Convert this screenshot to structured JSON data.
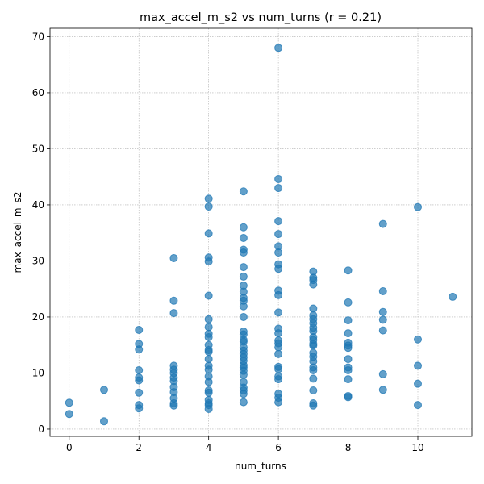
{
  "chart_data": {
    "type": "scatter",
    "title": "max_accel_m_s2 vs num_turns (r = 0.21)",
    "xlabel": "num_turns",
    "ylabel": "max_accel_m_s2",
    "xlim": [
      -0.55,
      11.55
    ],
    "ylim": [
      -1.3,
      71.5
    ],
    "xticks": [
      0,
      2,
      4,
      6,
      8,
      10
    ],
    "yticks": [
      0,
      10,
      20,
      30,
      40,
      50,
      60,
      70
    ],
    "grid": true,
    "color": "#1f77b4",
    "points": [
      [
        0,
        4.7
      ],
      [
        0,
        2.7
      ],
      [
        1,
        7.0
      ],
      [
        1,
        1.4
      ],
      [
        2,
        17.7
      ],
      [
        2,
        15.2
      ],
      [
        2,
        14.2
      ],
      [
        2,
        10.5
      ],
      [
        2,
        9.2
      ],
      [
        2,
        8.7
      ],
      [
        2,
        6.5
      ],
      [
        2,
        4.3
      ],
      [
        2,
        3.7
      ],
      [
        3,
        30.5
      ],
      [
        3,
        22.9
      ],
      [
        3,
        20.7
      ],
      [
        3,
        11.3
      ],
      [
        3,
        10.6
      ],
      [
        3,
        10.0
      ],
      [
        3,
        9.2
      ],
      [
        3,
        8.6
      ],
      [
        3,
        7.5
      ],
      [
        3,
        6.6
      ],
      [
        3,
        5.5
      ],
      [
        3,
        4.6
      ],
      [
        3,
        4.2
      ],
      [
        4,
        41.1
      ],
      [
        4,
        39.7
      ],
      [
        4,
        34.9
      ],
      [
        4,
        30.6
      ],
      [
        4,
        29.9
      ],
      [
        4,
        23.8
      ],
      [
        4,
        19.6
      ],
      [
        4,
        18.2
      ],
      [
        4,
        17.0
      ],
      [
        4,
        16.4
      ],
      [
        4,
        15.0
      ],
      [
        4,
        14.1
      ],
      [
        4,
        13.8
      ],
      [
        4,
        12.5
      ],
      [
        4,
        11.3
      ],
      [
        4,
        10.6
      ],
      [
        4,
        9.4
      ],
      [
        4,
        8.4
      ],
      [
        4,
        6.9
      ],
      [
        4,
        6.5
      ],
      [
        4,
        5.2
      ],
      [
        4,
        4.6
      ],
      [
        4,
        4.3
      ],
      [
        4,
        3.6
      ],
      [
        5,
        42.4
      ],
      [
        5,
        36.0
      ],
      [
        5,
        34.1
      ],
      [
        5,
        32.0
      ],
      [
        5,
        31.5
      ],
      [
        5,
        28.9
      ],
      [
        5,
        27.2
      ],
      [
        5,
        25.6
      ],
      [
        5,
        24.5
      ],
      [
        5,
        23.4
      ],
      [
        5,
        22.9
      ],
      [
        5,
        21.9
      ],
      [
        5,
        20.0
      ],
      [
        5,
        17.4
      ],
      [
        5,
        16.9
      ],
      [
        5,
        15.9
      ],
      [
        5,
        15.6
      ],
      [
        5,
        14.6
      ],
      [
        5,
        14.0
      ],
      [
        5,
        13.4
      ],
      [
        5,
        12.8
      ],
      [
        5,
        12.2
      ],
      [
        5,
        11.4
      ],
      [
        5,
        11.0
      ],
      [
        5,
        10.4
      ],
      [
        5,
        9.7
      ],
      [
        5,
        8.4
      ],
      [
        5,
        7.4
      ],
      [
        5,
        6.9
      ],
      [
        5,
        6.3
      ],
      [
        5,
        4.8
      ],
      [
        6,
        68.0
      ],
      [
        6,
        44.6
      ],
      [
        6,
        43.0
      ],
      [
        6,
        37.1
      ],
      [
        6,
        34.8
      ],
      [
        6,
        32.6
      ],
      [
        6,
        31.5
      ],
      [
        6,
        29.4
      ],
      [
        6,
        28.6
      ],
      [
        6,
        24.7
      ],
      [
        6,
        23.9
      ],
      [
        6,
        20.8
      ],
      [
        6,
        17.9
      ],
      [
        6,
        17.1
      ],
      [
        6,
        15.8
      ],
      [
        6,
        15.3
      ],
      [
        6,
        14.6
      ],
      [
        6,
        13.4
      ],
      [
        6,
        11.1
      ],
      [
        6,
        10.7
      ],
      [
        6,
        9.4
      ],
      [
        6,
        8.9
      ],
      [
        6,
        6.3
      ],
      [
        6,
        5.6
      ],
      [
        6,
        4.8
      ],
      [
        7,
        28.1
      ],
      [
        7,
        27.0
      ],
      [
        7,
        26.6
      ],
      [
        7,
        25.8
      ],
      [
        7,
        21.5
      ],
      [
        7,
        20.3
      ],
      [
        7,
        19.6
      ],
      [
        7,
        18.9
      ],
      [
        7,
        18.1
      ],
      [
        7,
        17.5
      ],
      [
        7,
        16.4
      ],
      [
        7,
        15.9
      ],
      [
        7,
        15.2
      ],
      [
        7,
        14.9
      ],
      [
        7,
        13.6
      ],
      [
        7,
        12.9
      ],
      [
        7,
        12.1
      ],
      [
        7,
        11.0
      ],
      [
        7,
        10.5
      ],
      [
        7,
        9.0
      ],
      [
        7,
        6.9
      ],
      [
        7,
        4.6
      ],
      [
        7,
        4.2
      ],
      [
        8,
        28.3
      ],
      [
        8,
        22.6
      ],
      [
        8,
        19.4
      ],
      [
        8,
        17.1
      ],
      [
        8,
        15.4
      ],
      [
        8,
        14.9
      ],
      [
        8,
        14.5
      ],
      [
        8,
        12.5
      ],
      [
        8,
        11.0
      ],
      [
        8,
        10.5
      ],
      [
        8,
        8.9
      ],
      [
        8,
        5.9
      ],
      [
        8,
        5.7
      ],
      [
        9,
        36.6
      ],
      [
        9,
        24.6
      ],
      [
        9,
        20.9
      ],
      [
        9,
        19.5
      ],
      [
        9,
        17.6
      ],
      [
        9,
        9.8
      ],
      [
        9,
        7.0
      ],
      [
        10,
        39.6
      ],
      [
        10,
        16.0
      ],
      [
        10,
        11.3
      ],
      [
        10,
        8.1
      ],
      [
        10,
        4.3
      ],
      [
        11,
        23.6
      ]
    ]
  }
}
